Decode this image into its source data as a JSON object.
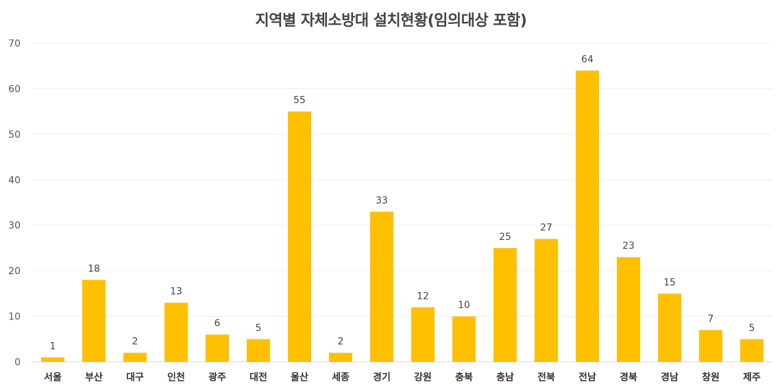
{
  "chart_data": {
    "type": "bar",
    "title": "지역별 자체소방대 설치현황(임의대상 포함)",
    "categories": [
      "서울",
      "부산",
      "대구",
      "인천",
      "광주",
      "대전",
      "울산",
      "세종",
      "경기",
      "강원",
      "충북",
      "충남",
      "전북",
      "전남",
      "경북",
      "경남",
      "창원",
      "제주"
    ],
    "values": [
      1,
      18,
      2,
      13,
      6,
      5,
      55,
      2,
      33,
      12,
      10,
      25,
      27,
      64,
      23,
      15,
      7,
      5
    ],
    "ylim": [
      0,
      70
    ],
    "yticks": [
      0,
      10,
      20,
      30,
      40,
      50,
      60,
      70
    ],
    "grid": true,
    "bar_color": "#FFC000",
    "xlabel": "",
    "ylabel": ""
  }
}
